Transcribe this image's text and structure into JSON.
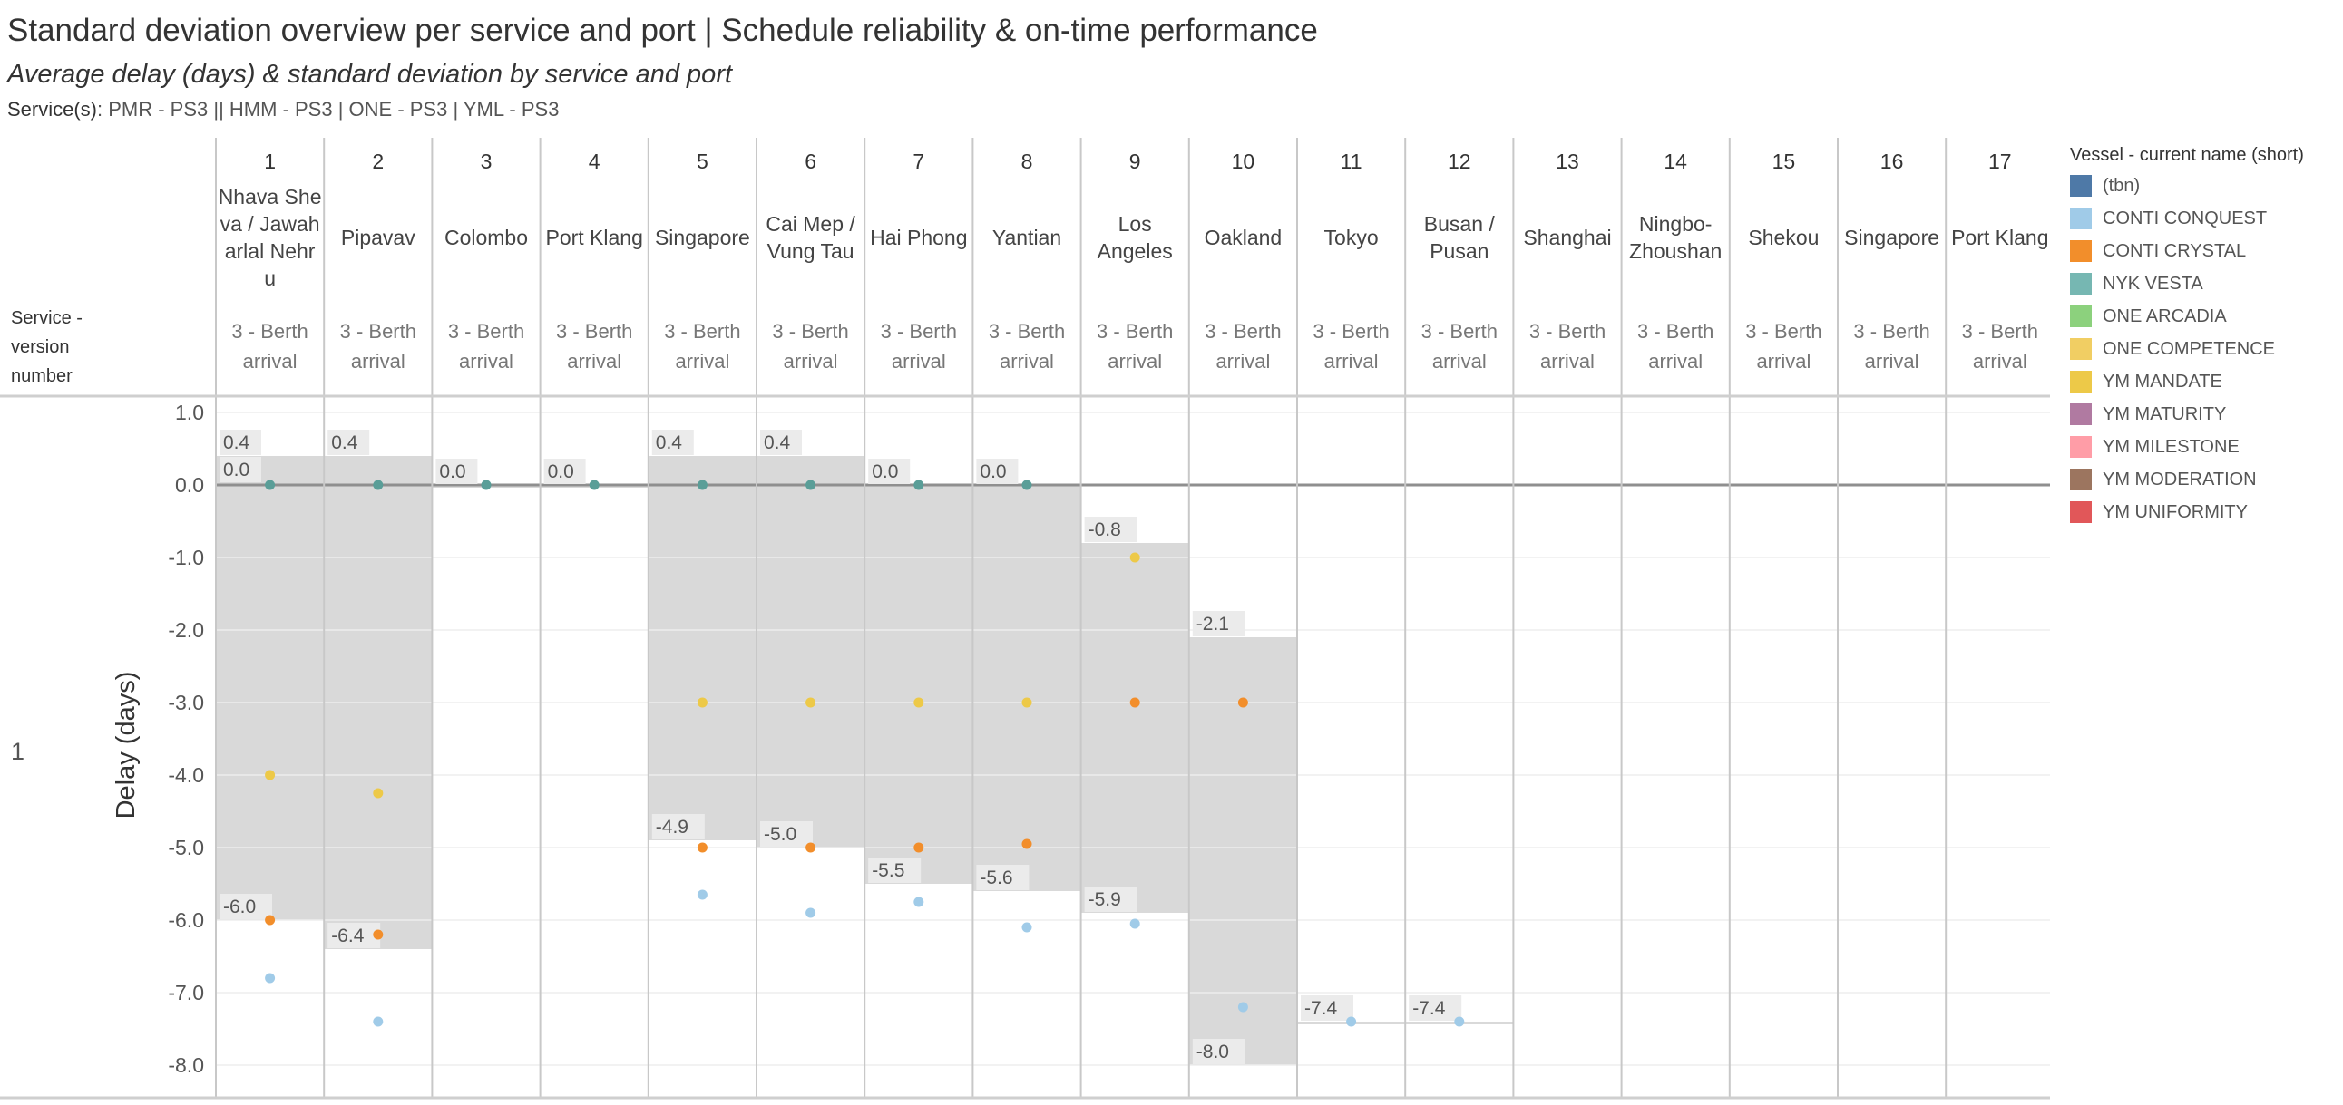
{
  "header": {
    "title": "Standard deviation overview per service and port  |  Schedule reliability & on-time performance",
    "subtitle": "Average delay (days) & standard deviation by service and port",
    "services_label": "Service(s)",
    "services_value": ": PMR - PS3 || HMM - PS3 | ONE - PS3 | YML - PS3"
  },
  "chart_data": {
    "type": "scatter",
    "row_header": "Service - version number",
    "row_value": "1",
    "ylabel": "Delay (days)",
    "ylim": [
      -8.4,
      1.2
    ],
    "yticks": [
      1.0,
      0.0,
      -1.0,
      -2.0,
      -3.0,
      -4.0,
      -5.0,
      -6.0,
      -7.0,
      -8.0
    ],
    "ytick_labels": [
      "1.0",
      "0.0",
      "-1.0",
      "-2.0",
      "-3.0",
      "-4.0",
      "-5.0",
      "-6.0",
      "-7.0",
      "-8.0"
    ],
    "zero_line": 0,
    "columns": [
      {
        "seq": "1",
        "port": "Nhava She va / Jawah arlal Nehr u",
        "event": "3 - Berth arrival",
        "band_top": 0.4,
        "band_bottom": -6.0,
        "top_label": "0.4",
        "mid_label": "0.0",
        "bottom_label": "-6.0"
      },
      {
        "seq": "2",
        "port": "Pipavav",
        "event": "3 - Berth arrival",
        "band_top": 0.4,
        "band_bottom": -6.4,
        "top_label": "0.4",
        "mid_label": "",
        "bottom_label": "-6.4"
      },
      {
        "seq": "3",
        "port": "Colombo",
        "event": "3 - Berth arrival",
        "band_top": 0.0,
        "band_bottom": 0.0,
        "top_label": "0.0",
        "mid_label": "",
        "bottom_label": ""
      },
      {
        "seq": "4",
        "port": "Port Klang",
        "event": "3 - Berth arrival",
        "band_top": 0.0,
        "band_bottom": 0.0,
        "top_label": "0.0",
        "mid_label": "",
        "bottom_label": ""
      },
      {
        "seq": "5",
        "port": "Singapore",
        "event": "3 - Berth arrival",
        "band_top": 0.4,
        "band_bottom": -4.9,
        "top_label": "0.4",
        "mid_label": "",
        "bottom_label": "-4.9"
      },
      {
        "seq": "6",
        "port": "Cai Mep / Vung Tau",
        "event": "3 - Berth arrival",
        "band_top": 0.4,
        "band_bottom": -5.0,
        "top_label": "0.4",
        "mid_label": "",
        "bottom_label": "-5.0"
      },
      {
        "seq": "7",
        "port": "Hai Phong",
        "event": "3 - Berth arrival",
        "band_top": 0.0,
        "band_bottom": -5.5,
        "top_label": "0.0",
        "mid_label": "",
        "bottom_label": "-5.5"
      },
      {
        "seq": "8",
        "port": "Yantian",
        "event": "3 - Berth arrival",
        "band_top": 0.0,
        "band_bottom": -5.6,
        "top_label": "0.0",
        "mid_label": "",
        "bottom_label": "-5.6"
      },
      {
        "seq": "9",
        "port": "Los Angeles",
        "event": "3 - Berth arrival",
        "band_top": -0.8,
        "band_bottom": -5.9,
        "top_label": "-0.8",
        "mid_label": "",
        "bottom_label": "-5.9"
      },
      {
        "seq": "10",
        "port": "Oakland",
        "event": "3 - Berth arrival",
        "band_top": -2.1,
        "band_bottom": -8.0,
        "top_label": "-2.1",
        "mid_label": "",
        "bottom_label": "-8.0"
      },
      {
        "seq": "11",
        "port": "Tokyo",
        "event": "3 - Berth arrival",
        "band_top": -7.4,
        "band_bottom": -7.4,
        "top_label": "-7.4",
        "mid_label": "",
        "bottom_label": ""
      },
      {
        "seq": "12",
        "port": "Busan / Pusan",
        "event": "3 - Berth arrival",
        "band_top": -7.4,
        "band_bottom": -7.4,
        "top_label": "-7.4",
        "mid_label": "",
        "bottom_label": ""
      },
      {
        "seq": "13",
        "port": "Shanghai",
        "event": "3 - Berth arrival",
        "band_top": null,
        "band_bottom": null,
        "top_label": "",
        "mid_label": "",
        "bottom_label": ""
      },
      {
        "seq": "14",
        "port": "Ningbo- Zhoushan",
        "event": "3 - Berth arrival",
        "band_top": null,
        "band_bottom": null,
        "top_label": "",
        "mid_label": "",
        "bottom_label": ""
      },
      {
        "seq": "15",
        "port": "Shekou",
        "event": "3 - Berth arrival",
        "band_top": null,
        "band_bottom": null,
        "top_label": "",
        "mid_label": "",
        "bottom_label": ""
      },
      {
        "seq": "16",
        "port": "Singapore",
        "event": "3 - Berth arrival",
        "band_top": null,
        "band_bottom": null,
        "top_label": "",
        "mid_label": "",
        "bottom_label": ""
      },
      {
        "seq": "17",
        "port": "Port Klang",
        "event": "3 - Berth arrival",
        "band_top": null,
        "band_bottom": null,
        "top_label": "",
        "mid_label": "",
        "bottom_label": ""
      }
    ],
    "points": [
      {
        "col": 1,
        "y": 0.0,
        "vessel": "NYK VESTA"
      },
      {
        "col": 1,
        "y": -4.0,
        "vessel": "YM MANDATE"
      },
      {
        "col": 1,
        "y": -6.0,
        "vessel": "CONTI CRYSTAL"
      },
      {
        "col": 1,
        "y": -6.8,
        "vessel": "CONTI CONQUEST"
      },
      {
        "col": 2,
        "y": 0.0,
        "vessel": "NYK VESTA"
      },
      {
        "col": 2,
        "y": -4.25,
        "vessel": "YM MANDATE"
      },
      {
        "col": 2,
        "y": -6.2,
        "vessel": "CONTI CRYSTAL"
      },
      {
        "col": 2,
        "y": -7.4,
        "vessel": "CONTI CONQUEST"
      },
      {
        "col": 3,
        "y": 0.0,
        "vessel": "NYK VESTA"
      },
      {
        "col": 4,
        "y": 0.0,
        "vessel": "NYK VESTA"
      },
      {
        "col": 5,
        "y": 0.0,
        "vessel": "NYK VESTA"
      },
      {
        "col": 5,
        "y": -3.0,
        "vessel": "YM MANDATE"
      },
      {
        "col": 5,
        "y": -5.0,
        "vessel": "CONTI CRYSTAL"
      },
      {
        "col": 5,
        "y": -5.65,
        "vessel": "CONTI CONQUEST"
      },
      {
        "col": 6,
        "y": 0.0,
        "vessel": "NYK VESTA"
      },
      {
        "col": 6,
        "y": -3.0,
        "vessel": "YM MANDATE"
      },
      {
        "col": 6,
        "y": -5.0,
        "vessel": "CONTI CRYSTAL"
      },
      {
        "col": 6,
        "y": -5.9,
        "vessel": "CONTI CONQUEST"
      },
      {
        "col": 7,
        "y": 0.0,
        "vessel": "NYK VESTA"
      },
      {
        "col": 7,
        "y": -3.0,
        "vessel": "YM MANDATE"
      },
      {
        "col": 7,
        "y": -5.0,
        "vessel": "CONTI CRYSTAL"
      },
      {
        "col": 7,
        "y": -5.75,
        "vessel": "CONTI CONQUEST"
      },
      {
        "col": 8,
        "y": 0.0,
        "vessel": "NYK VESTA"
      },
      {
        "col": 8,
        "y": -3.0,
        "vessel": "YM MANDATE"
      },
      {
        "col": 8,
        "y": -4.95,
        "vessel": "CONTI CRYSTAL"
      },
      {
        "col": 8,
        "y": -6.1,
        "vessel": "CONTI CONQUEST"
      },
      {
        "col": 9,
        "y": -1.0,
        "vessel": "YM MANDATE"
      },
      {
        "col": 9,
        "y": -3.0,
        "vessel": "CONTI CRYSTAL"
      },
      {
        "col": 9,
        "y": -6.05,
        "vessel": "CONTI CONQUEST"
      },
      {
        "col": 10,
        "y": -3.0,
        "vessel": "CONTI CRYSTAL"
      },
      {
        "col": 10,
        "y": -7.2,
        "vessel": "CONTI CONQUEST"
      },
      {
        "col": 11,
        "y": -7.4,
        "vessel": "CONTI CONQUEST"
      },
      {
        "col": 12,
        "y": -7.4,
        "vessel": "CONTI CONQUEST"
      }
    ],
    "legend": {
      "title": "Vessel - current name (short)",
      "placement": "right",
      "items": [
        {
          "name": "(tbn)",
          "color": "#4E79A7"
        },
        {
          "name": "CONTI CONQUEST",
          "color": "#A0CBE8"
        },
        {
          "name": "CONTI CRYSTAL",
          "color": "#F28E2B"
        },
        {
          "name": "NYK VESTA",
          "color": "#76B7B2"
        },
        {
          "name": "ONE ARCADIA",
          "color": "#8CD17D"
        },
        {
          "name": "ONE COMPETENCE",
          "color": "#F1CE63"
        },
        {
          "name": "YM MANDATE",
          "color": "#EDC948"
        },
        {
          "name": "YM MATURITY",
          "color": "#B07AA1"
        },
        {
          "name": "YM MILESTONE",
          "color": "#FF9DA7"
        },
        {
          "name": "YM MODERATION",
          "color": "#9C755F"
        },
        {
          "name": "YM UNIFORMITY",
          "color": "#E15759"
        }
      ]
    },
    "colors": {
      "band": "#d9d9d9",
      "label_bg": "#ebebeb",
      "grid": "#e8e8e8",
      "divider": "#c8c8c8",
      "zero_line": "#8f8f8f",
      "point_nyk": "#5a9e98"
    }
  }
}
